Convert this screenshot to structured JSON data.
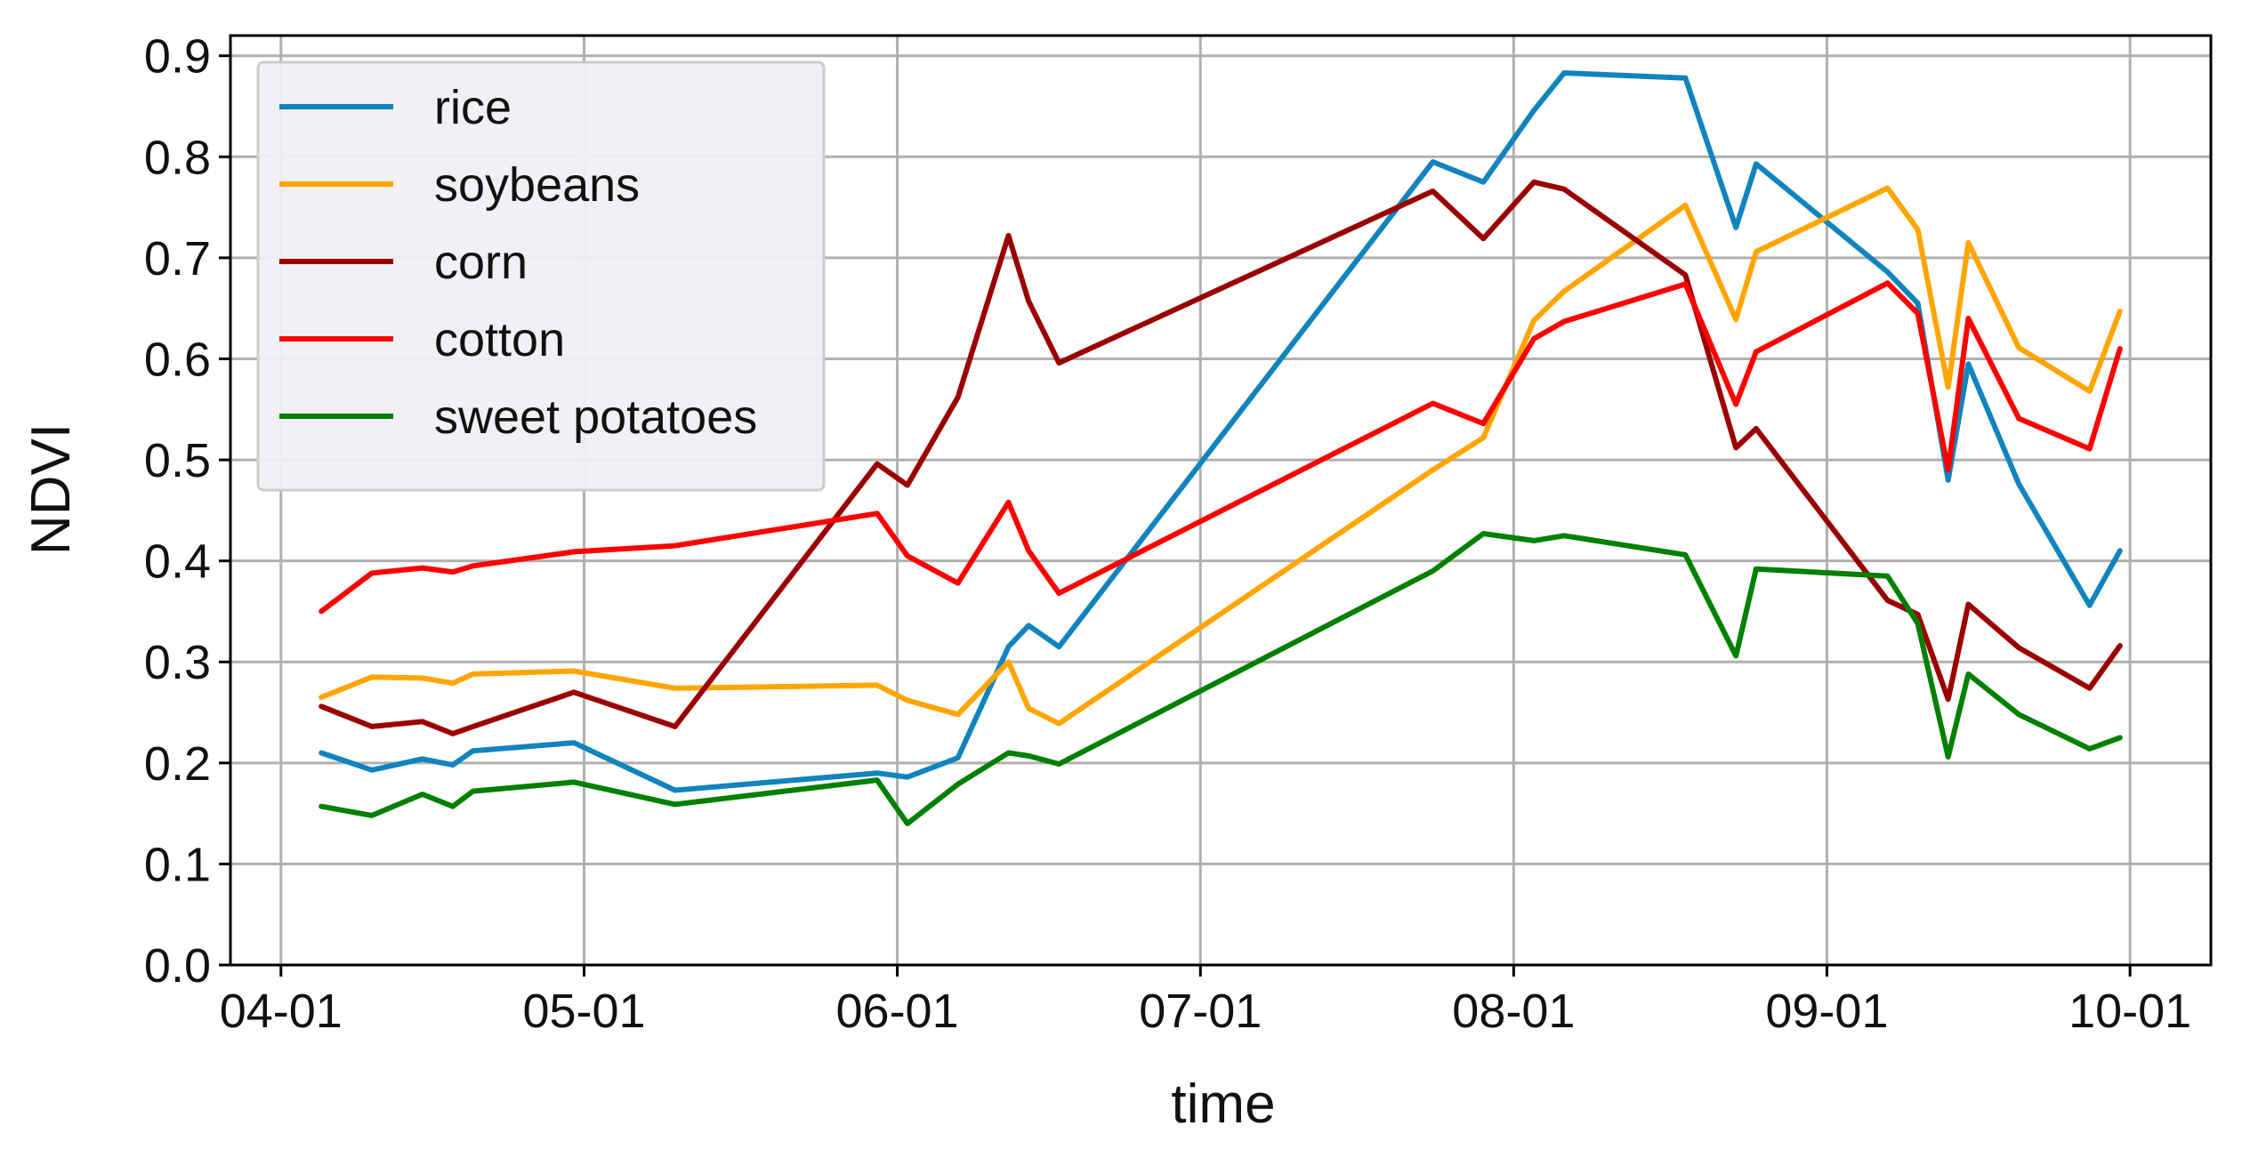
{
  "chart_data": {
    "type": "line",
    "xlabel": "time",
    "ylabel": "NDVI",
    "x_axis_type": "date",
    "year": "2022",
    "xlim": [
      "2022-03-27",
      "2022-10-09"
    ],
    "ylim": [
      0,
      0.92
    ],
    "xticks": [
      {
        "date": "2022-04-01",
        "label": "04-01"
      },
      {
        "date": "2022-05-01",
        "label": "05-01"
      },
      {
        "date": "2022-06-01",
        "label": "06-01"
      },
      {
        "date": "2022-07-01",
        "label": "07-01"
      },
      {
        "date": "2022-08-01",
        "label": "08-01"
      },
      {
        "date": "2022-09-01",
        "label": "09-01"
      },
      {
        "date": "2022-10-01",
        "label": "10-01"
      }
    ],
    "yticks": [
      {
        "value": 0.0,
        "label": "0.0"
      },
      {
        "value": 0.1,
        "label": "0.1"
      },
      {
        "value": 0.2,
        "label": "0.2"
      },
      {
        "value": 0.3,
        "label": "0.3"
      },
      {
        "value": 0.4,
        "label": "0.4"
      },
      {
        "value": 0.5,
        "label": "0.5"
      },
      {
        "value": 0.6,
        "label": "0.6"
      },
      {
        "value": 0.7,
        "label": "0.7"
      },
      {
        "value": 0.8,
        "label": "0.8"
      },
      {
        "value": 0.9,
        "label": "0.9"
      }
    ],
    "grid": true,
    "legend_position": "top-left",
    "x": [
      "2022-04-05",
      "2022-04-10",
      "2022-04-15",
      "2022-04-18",
      "2022-04-20",
      "2022-04-30",
      "2022-05-10",
      "2022-05-30",
      "2022-06-02",
      "2022-06-07",
      "2022-06-12",
      "2022-06-14",
      "2022-06-17",
      "2022-07-24",
      "2022-07-29",
      "2022-08-03",
      "2022-08-06",
      "2022-08-18",
      "2022-08-23",
      "2022-08-25",
      "2022-09-07",
      "2022-09-10",
      "2022-09-13",
      "2022-09-15",
      "2022-09-20",
      "2022-09-27",
      "2022-09-30"
    ],
    "series": [
      {
        "name": "rice",
        "color": "#1184be",
        "values": [
          0.21,
          0.193,
          0.204,
          0.198,
          0.212,
          0.22,
          0.173,
          0.19,
          0.186,
          0.205,
          0.315,
          0.336,
          0.315,
          0.795,
          0.775,
          0.846,
          0.883,
          0.878,
          0.73,
          0.793,
          0.686,
          0.655,
          0.48,
          0.595,
          0.476,
          0.356,
          0.41
        ]
      },
      {
        "name": "soybeans",
        "color": "#ffa500",
        "values": [
          0.265,
          0.285,
          0.284,
          0.279,
          0.288,
          0.291,
          0.274,
          0.277,
          0.262,
          0.248,
          0.3,
          0.254,
          0.239,
          0.49,
          0.522,
          0.638,
          0.667,
          0.752,
          0.639,
          0.706,
          0.769,
          0.728,
          0.572,
          0.715,
          0.611,
          0.568,
          0.647
        ]
      },
      {
        "name": "corn",
        "color": "#9b0000",
        "values": [
          0.256,
          0.236,
          0.241,
          0.229,
          0.236,
          0.27,
          0.236,
          0.496,
          0.475,
          0.562,
          0.722,
          0.657,
          0.596,
          0.766,
          0.719,
          0.775,
          0.768,
          0.683,
          0.512,
          0.531,
          0.361,
          0.347,
          0.263,
          0.357,
          0.314,
          0.274,
          0.316
        ]
      },
      {
        "name": "cotton",
        "color": "#ff0000",
        "values": [
          0.35,
          0.388,
          0.393,
          0.389,
          0.395,
          0.409,
          0.415,
          0.447,
          0.405,
          0.378,
          0.458,
          0.41,
          0.368,
          0.556,
          0.536,
          0.62,
          0.637,
          0.674,
          0.555,
          0.607,
          0.675,
          0.645,
          0.49,
          0.64,
          0.541,
          0.511,
          0.61
        ]
      },
      {
        "name": "sweet potatoes",
        "color": "#008000",
        "values": [
          0.157,
          0.148,
          0.169,
          0.157,
          0.172,
          0.181,
          0.159,
          0.183,
          0.14,
          0.179,
          0.21,
          0.207,
          0.199,
          0.39,
          0.427,
          0.42,
          0.425,
          0.406,
          0.306,
          0.392,
          0.385,
          0.338,
          0.206,
          0.288,
          0.248,
          0.214,
          0.225
        ]
      }
    ]
  }
}
